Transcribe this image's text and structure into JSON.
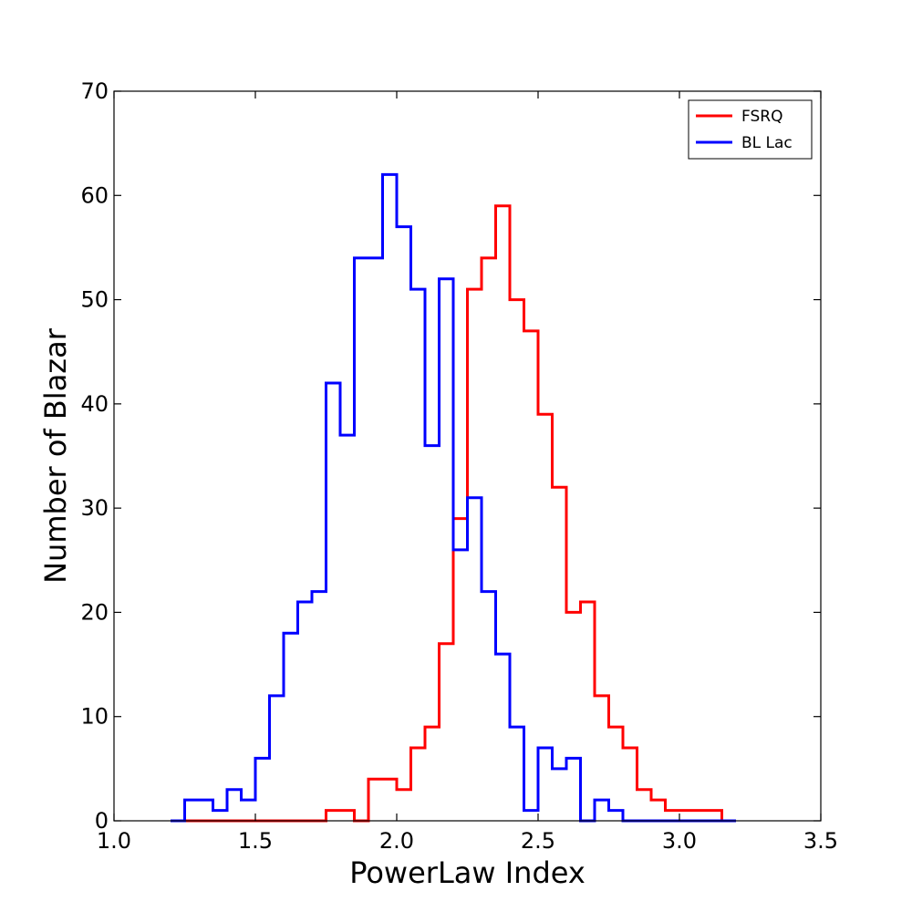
{
  "chart_data": {
    "type": "histogram-step",
    "title": "",
    "xlabel": "PowerLaw Index",
    "ylabel": "Number of Blazar",
    "xlim": [
      1.0,
      3.5
    ],
    "ylim": [
      0,
      70
    ],
    "xticks": [
      1.0,
      1.5,
      2.0,
      2.5,
      3.0,
      3.5
    ],
    "xtick_labels": [
      "1.0",
      "1.5",
      "2.0",
      "2.5",
      "3.0",
      "3.5"
    ],
    "yticks": [
      0,
      10,
      20,
      30,
      40,
      50,
      60,
      70
    ],
    "ytick_labels": [
      "0",
      "10",
      "20",
      "30",
      "40",
      "50",
      "60",
      "70"
    ],
    "grid": false,
    "legend_position": "top-right",
    "series": [
      {
        "name": "FSRQ",
        "color": "#ff0000",
        "bin_edges": [
          1.25,
          1.3,
          1.35,
          1.4,
          1.45,
          1.5,
          1.55,
          1.6,
          1.65,
          1.7,
          1.75,
          1.8,
          1.85,
          1.9,
          1.95,
          2.0,
          2.05,
          2.1,
          2.15,
          2.2,
          2.25,
          2.3,
          2.35,
          2.4,
          2.45,
          2.5,
          2.55,
          2.6,
          2.65,
          2.7,
          2.75,
          2.8,
          2.85,
          2.9,
          2.95,
          3.0,
          3.05,
          3.1,
          3.15
        ],
        "counts": [
          0,
          0,
          0,
          0,
          0,
          0,
          0,
          0,
          0,
          0,
          1,
          1,
          0,
          4,
          4,
          3,
          7,
          9,
          17,
          29,
          51,
          54,
          59,
          50,
          47,
          39,
          32,
          20,
          21,
          12,
          9,
          7,
          3,
          2,
          1,
          1,
          1,
          1
        ]
      },
      {
        "name": "BL Lac",
        "color": "#0000ff",
        "bin_edges": [
          1.2,
          1.25,
          1.3,
          1.35,
          1.4,
          1.45,
          1.5,
          1.55,
          1.6,
          1.65,
          1.7,
          1.75,
          1.8,
          1.85,
          1.9,
          1.95,
          2.0,
          2.05,
          2.1,
          2.15,
          2.2,
          2.25,
          2.3,
          2.35,
          2.4,
          2.45,
          2.5,
          2.55,
          2.6,
          2.65,
          2.7,
          2.75,
          2.8,
          2.85,
          2.9,
          2.95,
          3.0,
          3.05,
          3.1,
          3.15,
          3.2
        ],
        "counts": [
          0,
          2,
          2,
          1,
          3,
          2,
          6,
          12,
          18,
          21,
          22,
          42,
          37,
          54,
          54,
          62,
          57,
          51,
          36,
          52,
          26,
          31,
          22,
          16,
          9,
          1,
          7,
          5,
          6,
          0,
          2,
          1,
          0,
          0,
          0,
          0,
          0,
          0,
          0,
          0
        ]
      }
    ]
  }
}
